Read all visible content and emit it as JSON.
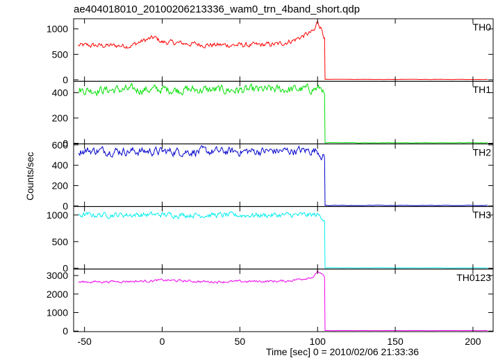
{
  "chart_data": {
    "type": "line",
    "title": "ae404018010_20100206213336_wam0_trn_4band_short.qdp",
    "xlabel": "Time [sec] 0 = 2010/02/06 21:33:36",
    "ylabel": "Counts/sec",
    "xlim": [
      -57,
      213
    ],
    "xticks": [
      -50,
      0,
      50,
      100,
      150,
      200
    ],
    "x_start": -54,
    "x_step": 0.5,
    "drop_time": 104.5,
    "x_end": 210,
    "grid": false,
    "legend": "none",
    "panels": [
      {
        "name": "TH0",
        "color": "#ff0000",
        "ylim": [
          -30,
          1200
        ],
        "yticks": [
          0,
          500,
          1000
        ],
        "baseline": 680,
        "noise": 55,
        "after_level": 8,
        "anchors": [
          [
            -54,
            675
          ],
          [
            -20,
            670
          ],
          [
            -12,
            770
          ],
          [
            -5,
            830
          ],
          [
            0,
            740
          ],
          [
            30,
            685
          ],
          [
            60,
            680
          ],
          [
            75,
            700
          ],
          [
            85,
            780
          ],
          [
            92,
            880
          ],
          [
            98,
            960
          ],
          [
            100,
            1150
          ],
          [
            103,
            980
          ],
          [
            104.5,
            820
          ]
        ]
      },
      {
        "name": "TH1",
        "color": "#00e000",
        "ylim": [
          -5,
          490
        ],
        "yticks": [
          0,
          200,
          400
        ],
        "baseline": 420,
        "noise": 38,
        "after_level": 4,
        "anchors": [
          [
            -54,
            420
          ],
          [
            0,
            425
          ],
          [
            50,
            420
          ],
          [
            100,
            430
          ],
          [
            103,
            440
          ],
          [
            104.5,
            360
          ]
        ]
      },
      {
        "name": "TH2",
        "color": "#0000cc",
        "ylim": [
          -5,
          610
        ],
        "yticks": [
          0,
          200,
          400,
          600
        ],
        "baseline": 535,
        "noise": 45,
        "after_level": 5,
        "anchors": [
          [
            -54,
            545
          ],
          [
            0,
            535
          ],
          [
            50,
            535
          ],
          [
            100,
            545
          ],
          [
            104.5,
            470
          ]
        ]
      },
      {
        "name": "TH3",
        "color": "#00eeee",
        "ylim": [
          -15,
          1160
        ],
        "yticks": [
          0,
          500,
          1000
        ],
        "baseline": 1000,
        "noise": 55,
        "after_level": 8,
        "anchors": [
          [
            -54,
            1000
          ],
          [
            0,
            1005
          ],
          [
            50,
            995
          ],
          [
            100,
            1000
          ],
          [
            104.5,
            930
          ]
        ]
      },
      {
        "name": "TH0123",
        "color": "#ee00ee",
        "ylim": [
          -30,
          3350
        ],
        "yticks": [
          0,
          1000,
          2000,
          3000
        ],
        "baseline": 2650,
        "noise": 70,
        "after_level": 25,
        "anchors": [
          [
            -54,
            2650
          ],
          [
            -10,
            2700
          ],
          [
            0,
            2750
          ],
          [
            30,
            2660
          ],
          [
            80,
            2700
          ],
          [
            92,
            2850
          ],
          [
            98,
            2950
          ],
          [
            100,
            3250
          ],
          [
            104.5,
            2900
          ]
        ]
      }
    ]
  }
}
